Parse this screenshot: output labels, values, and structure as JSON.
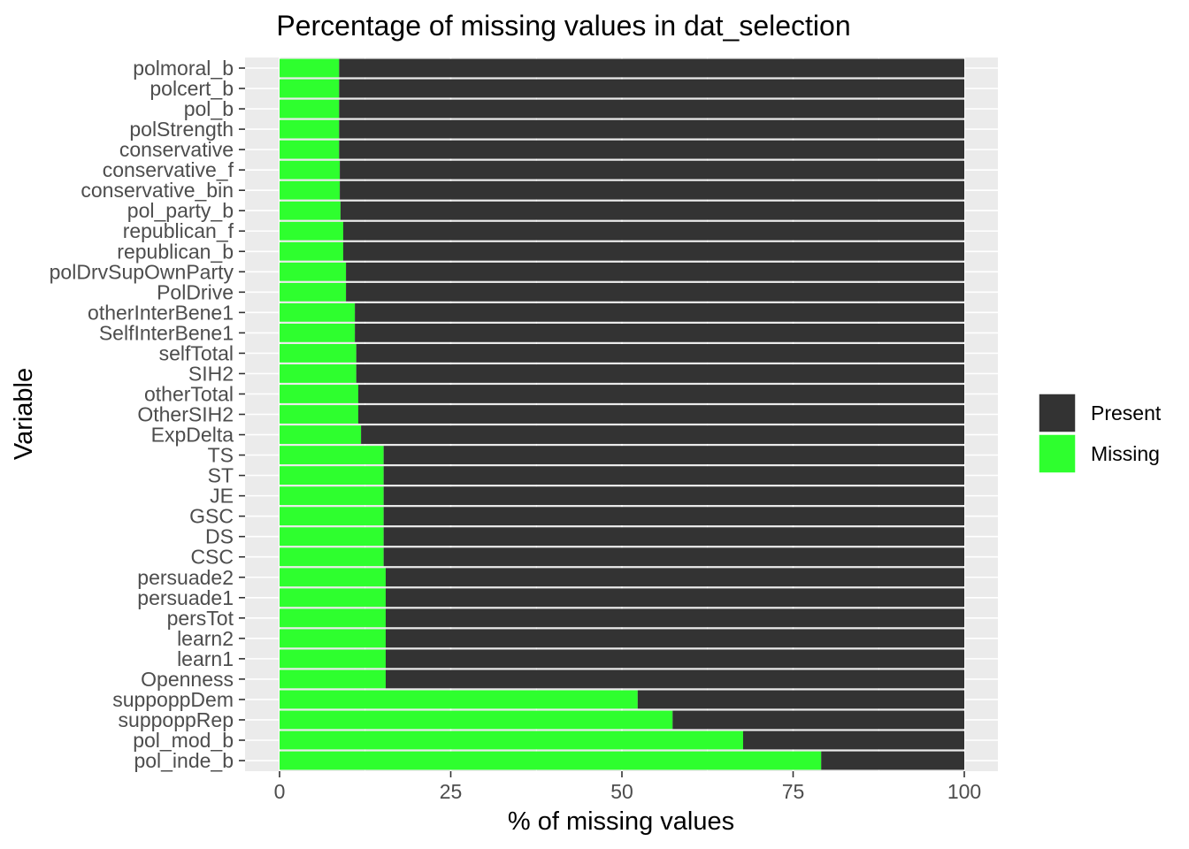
{
  "chart_data": {
    "type": "bar",
    "orientation": "horizontal",
    "stacked": true,
    "title": "Percentage of missing values in dat_selection",
    "xlabel": "% of missing values",
    "ylabel": "Variable",
    "xlim": [
      0,
      100
    ],
    "xticks": [
      0,
      25,
      50,
      75,
      100
    ],
    "grid": true,
    "legend_position": "right",
    "legend": [
      {
        "name": "Present",
        "color": "#333333"
      },
      {
        "name": "Missing",
        "color": "#2EFF2E"
      }
    ],
    "categories": [
      "polmoral_b",
      "polcert_b",
      "pol_b",
      "polStrength",
      "conservative",
      "conservative_f",
      "conservative_bin",
      "pol_party_b",
      "republican_f",
      "republican_b",
      "polDrvSupOwnParty",
      "PolDrive",
      "otherInterBene1",
      "SelfInterBene1",
      "selfTotal",
      "SIH2",
      "otherTotal",
      "OtherSIH2",
      "ExpDelta",
      "TS",
      "ST",
      "JE",
      "GSC",
      "DS",
      "CSC",
      "persuade2",
      "persuade1",
      "persTot",
      "learn2",
      "learn1",
      "Openness",
      "suppoppDem",
      "suppoppRep",
      "pol_mod_b",
      "pol_inde_b"
    ],
    "missing": [
      8.7,
      8.7,
      8.7,
      8.7,
      8.7,
      8.8,
      8.8,
      8.9,
      9.3,
      9.3,
      9.7,
      9.7,
      11.0,
      11.0,
      11.2,
      11.2,
      11.5,
      11.5,
      11.9,
      15.2,
      15.2,
      15.2,
      15.2,
      15.2,
      15.2,
      15.5,
      15.5,
      15.5,
      15.5,
      15.5,
      15.5,
      52.3,
      57.4,
      67.7,
      79.1
    ]
  }
}
